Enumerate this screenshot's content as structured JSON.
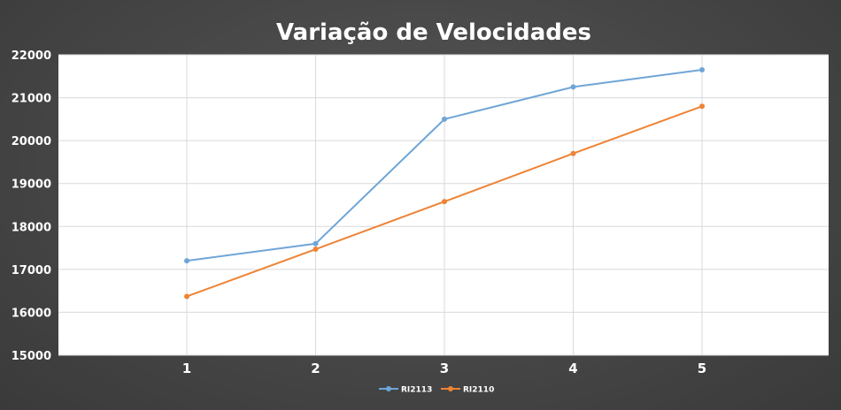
{
  "chart_data": {
    "type": "line",
    "title": "Variação de Velocidades",
    "xlabel": "",
    "ylabel": "",
    "x": [
      1,
      2,
      3,
      4,
      5
    ],
    "x_tick_labels": [
      "1",
      "2",
      "3",
      "4",
      "5"
    ],
    "ylim": [
      15000,
      22000
    ],
    "y_ticks": [
      15000,
      16000,
      17000,
      18000,
      19000,
      20000,
      21000,
      22000
    ],
    "grid": true,
    "legend_position": "bottom",
    "series": [
      {
        "name": "RI2113",
        "color": "#6fa5d7",
        "values": [
          17200,
          17600,
          20500,
          21250,
          21650
        ]
      },
      {
        "name": "RI2110",
        "color": "#ee8335",
        "values": [
          16370,
          17470,
          18580,
          19700,
          20800
        ]
      }
    ]
  }
}
